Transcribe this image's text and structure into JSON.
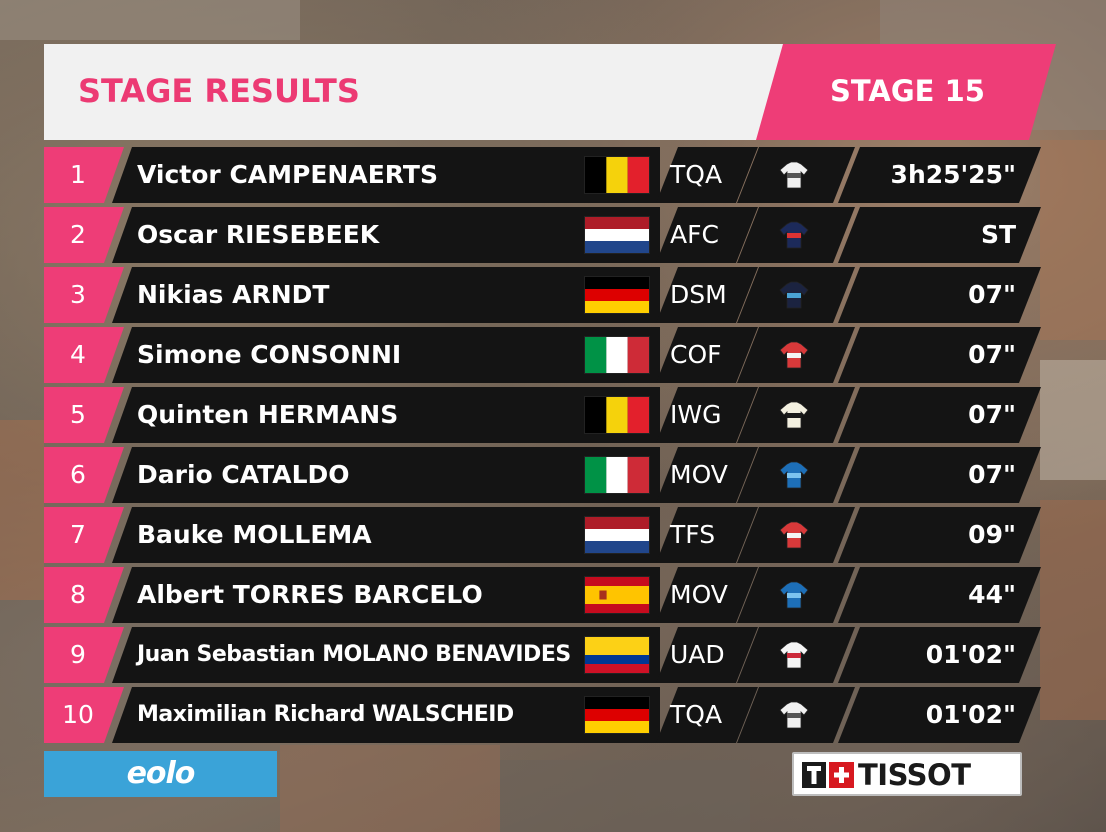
{
  "header": {
    "title": "STAGE RESULTS",
    "stage": "STAGE 15"
  },
  "results": [
    {
      "pos": "1",
      "name": "Victor CAMPENAERTS",
      "flag": "belgium",
      "team": "TQA",
      "jersey": "white-jersey-icon",
      "time": "3h25'25\""
    },
    {
      "pos": "2",
      "name": "Oscar RIESEBEEK",
      "flag": "netherlands",
      "team": "AFC",
      "jersey": "navy-jersey-icon",
      "time": "ST"
    },
    {
      "pos": "3",
      "name": "Nikias ARNDT",
      "flag": "germany",
      "team": "DSM",
      "jersey": "dark-blue-jersey-icon",
      "time": "07\""
    },
    {
      "pos": "4",
      "name": "Simone CONSONNI",
      "flag": "italy",
      "team": "COF",
      "jersey": "red-white-jersey-icon",
      "time": "07\""
    },
    {
      "pos": "5",
      "name": "Quinten HERMANS",
      "flag": "belgium",
      "team": "IWG",
      "jersey": "white-yellow-jersey-icon",
      "time": "07\""
    },
    {
      "pos": "6",
      "name": "Dario CATALDO",
      "flag": "italy",
      "team": "MOV",
      "jersey": "blue-jersey-icon",
      "time": "07\""
    },
    {
      "pos": "7",
      "name": "Bauke MOLLEMA",
      "flag": "netherlands",
      "team": "TFS",
      "jersey": "red-white-jersey-icon",
      "time": "09\""
    },
    {
      "pos": "8",
      "name": "Albert TORRES BARCELO",
      "flag": "spain",
      "team": "MOV",
      "jersey": "blue-jersey-icon",
      "time": "44\""
    },
    {
      "pos": "9",
      "name": "Juan Sebastian MOLANO BENAVIDES",
      "flag": "colombia",
      "team": "UAD",
      "jersey": "white-red-jersey-icon",
      "time": "01'02\""
    },
    {
      "pos": "10",
      "name": "Maximilian Richard WALSCHEID",
      "flag": "germany",
      "team": "TQA",
      "jersey": "white-jersey-icon",
      "time": "01'02\""
    }
  ],
  "footer": {
    "sponsor_left": "eolo",
    "sponsor_right": "TISSOT"
  },
  "colors": {
    "accent_pink": "#ee3d77",
    "row_bg": "#141414",
    "eolo_blue": "#3aa3d8"
  }
}
